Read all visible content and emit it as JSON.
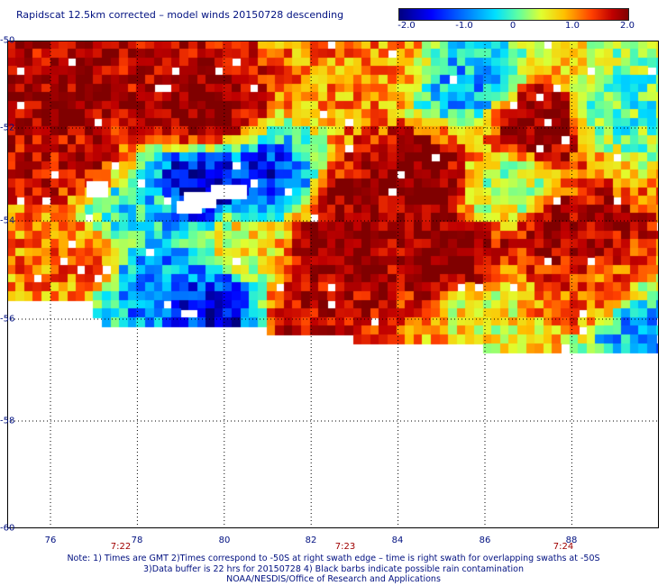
{
  "header": {
    "title": "Rapidscat 12.5km corrected – model winds 20150728 descending"
  },
  "colorbar": {
    "min": -2.0,
    "max": 2.0,
    "ticks": [
      "-2.0",
      "-1.0",
      "0",
      "1.0",
      "2.0"
    ],
    "colors": [
      "#000080",
      "#0000ff",
      "#0070ff",
      "#00e0ff",
      "#60ffa0",
      "#e0ff30",
      "#ffc000",
      "#ff4000",
      "#c00000",
      "#800000"
    ]
  },
  "axes": {
    "lat_labels": [
      "-50",
      "-52",
      "-54",
      "-56",
      "-58",
      "-60"
    ],
    "lon_labels": [
      "76",
      "78",
      "80",
      "82",
      "84",
      "86",
      "88"
    ],
    "time_labels": [
      "7:22",
      "7:23",
      "7:24"
    ]
  },
  "chart_data": {
    "type": "heatmap",
    "title": "Rapidscat 12.5km corrected – model winds 20150728 descending",
    "value_range": [
      -2.0,
      2.0
    ],
    "lon_range": [
      75.0,
      89.9
    ],
    "lat_range": [
      -60.0,
      -50.0
    ],
    "grid": true,
    "legend_placement": "top-right",
    "regions": [
      {
        "lon": 76.5,
        "lat": -51.5,
        "value": 1.8
      },
      {
        "lon": 79.5,
        "lat": -51.5,
        "value": 2.0
      },
      {
        "lon": 83.5,
        "lat": -50.6,
        "value": 0.9
      },
      {
        "lon": 76.5,
        "lat": -52.5,
        "value": 1.6
      },
      {
        "lon": 84.5,
        "lat": -52.8,
        "value": 2.0
      },
      {
        "lon": 87.3,
        "lat": -51.8,
        "value": 2.0
      },
      {
        "lon": 79.5,
        "lat": -53.0,
        "value": -1.8
      },
      {
        "lon": 81.0,
        "lat": -53.0,
        "value": -1.5
      },
      {
        "lon": 78.0,
        "lat": -53.5,
        "value": -0.6
      },
      {
        "lon": 85.5,
        "lat": -51.0,
        "value": -0.8
      },
      {
        "lon": 89.0,
        "lat": -51.5,
        "value": -0.3
      },
      {
        "lon": 86.5,
        "lat": -53.0,
        "value": 0.0
      },
      {
        "lon": 82.5,
        "lat": -54.3,
        "value": 2.0
      },
      {
        "lon": 83.0,
        "lat": -53.4,
        "value": 1.8
      },
      {
        "lon": 85.3,
        "lat": -54.6,
        "value": 2.0
      },
      {
        "lon": 88.0,
        "lat": -54.0,
        "value": 1.8
      },
      {
        "lon": 88.4,
        "lat": -55.2,
        "value": 1.2
      },
      {
        "lon": 76.5,
        "lat": -54.5,
        "value": 1.0
      },
      {
        "lon": 78.5,
        "lat": -55.0,
        "value": -1.0
      },
      {
        "lon": 79.8,
        "lat": -55.5,
        "value": -1.6
      },
      {
        "lon": 80.5,
        "lat": -54.2,
        "value": 0.4
      },
      {
        "lon": 82.0,
        "lat": -55.6,
        "value": 1.6
      },
      {
        "lon": 86.0,
        "lat": -55.5,
        "value": 0.3
      },
      {
        "lon": 89.5,
        "lat": -56.0,
        "value": -0.8
      }
    ]
  },
  "notes": {
    "line1": "Note: 1) Times are GMT 2)Times correspond to -50S at right swath edge – time is right swath for overlapping swaths at -50S",
    "line2": "3)Data buffer is 22 hrs for 20150728 4) Black barbs indicate possible rain contamination",
    "line3": "NOAA/NESDIS/Office of Research and Applications"
  }
}
